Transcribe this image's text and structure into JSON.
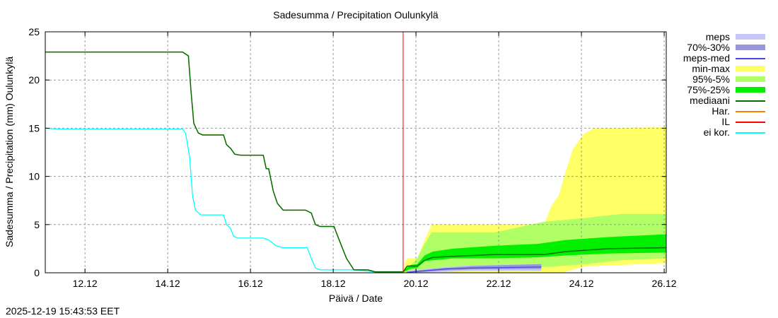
{
  "timestamp": "2025-12-19 15:43:53 EET",
  "chart_data": {
    "type": "area",
    "title": "Sadesumma / Precipitation  Oulunkylä",
    "xlabel": "Päivä / Date",
    "ylabel": "Sadesumma / Precipitation (mm)  Oulunkylä",
    "x_unit": "day of December 2025",
    "xlim": [
      11.04,
      26.05
    ],
    "ylim": [
      0,
      25
    ],
    "grid": true,
    "legend_position": "right",
    "xticks": [
      {
        "value": 12,
        "label": "12.12"
      },
      {
        "value": 14,
        "label": "14.12"
      },
      {
        "value": 16,
        "label": "16.12"
      },
      {
        "value": 18,
        "label": "18.12"
      },
      {
        "value": 20,
        "label": "20.12"
      },
      {
        "value": 22,
        "label": "22.12"
      },
      {
        "value": 24,
        "label": "24.12"
      },
      {
        "value": 26,
        "label": "26.12"
      }
    ],
    "yticks": [
      {
        "value": 0,
        "label": "0"
      },
      {
        "value": 5,
        "label": "5"
      },
      {
        "value": 10,
        "label": "10"
      },
      {
        "value": 15,
        "label": "15"
      },
      {
        "value": 20,
        "label": "20"
      },
      {
        "value": 25,
        "label": "25"
      }
    ],
    "now_line": {
      "name": "IL",
      "x": 19.69,
      "color": "#ff0000"
    },
    "legend": [
      {
        "label": "meps",
        "color": "#c8c8f8",
        "kind": "band"
      },
      {
        "label": "70%-30%",
        "color": "#9898d8",
        "kind": "band"
      },
      {
        "label": "meps-med",
        "color": "#4848e0",
        "kind": "line"
      },
      {
        "label": "min-max",
        "color": "#ffff66",
        "kind": "band"
      },
      {
        "label": "95%-5%",
        "color": "#b0ff66",
        "kind": "band"
      },
      {
        "label": "75%-25%",
        "color": "#00f000",
        "kind": "band"
      },
      {
        "label": "mediaani",
        "color": "#007000",
        "kind": "line"
      },
      {
        "label": "Har.",
        "color": "#ff8000",
        "kind": "line"
      },
      {
        "label": "IL",
        "color": "#ff0000",
        "kind": "line"
      },
      {
        "label": "ei kor.",
        "color": "#00ffff",
        "kind": "line"
      }
    ],
    "bands": [
      {
        "name": "min-max",
        "color": "#ffff66",
        "x": [
          19.69,
          19.78,
          20.03,
          20.17,
          20.38,
          21.91,
          23.11,
          23.28,
          23.45,
          23.62,
          23.79,
          24.03,
          24.22,
          24.31,
          26.05
        ],
        "lo": [
          0.05,
          0.05,
          0.05,
          0.05,
          0.05,
          0.05,
          0.05,
          0.05,
          0.05,
          0.1,
          0.3,
          0.6,
          0.7,
          0.7,
          1.0
        ],
        "hi": [
          0.3,
          1.5,
          1.5,
          3.0,
          5.0,
          5.0,
          5.1,
          7.0,
          8.0,
          10.5,
          12.8,
          14.3,
          14.8,
          15.0,
          15.1
        ]
      },
      {
        "name": "95%-5%",
        "color": "#b0ff66",
        "x": [
          19.69,
          19.86,
          20.03,
          20.21,
          20.38,
          21.91,
          23.11,
          24.14,
          24.31,
          24.99,
          26.05
        ],
        "lo": [
          0.05,
          0.1,
          0.2,
          0.3,
          0.4,
          0.5,
          0.6,
          0.9,
          1.0,
          1.3,
          1.5
        ],
        "hi": [
          0.2,
          0.7,
          1.5,
          3.0,
          4.2,
          4.2,
          5.3,
          5.7,
          5.8,
          6.1,
          6.1
        ]
      },
      {
        "name": "75%-25%",
        "color": "#00f000",
        "x": [
          19.69,
          19.86,
          20.03,
          20.21,
          20.41,
          20.89,
          21.91,
          22.94,
          23.62,
          24.65,
          26.05
        ],
        "lo": [
          0.05,
          0.4,
          0.5,
          1.2,
          1.3,
          1.5,
          1.5,
          1.6,
          1.8,
          2.0,
          2.1
        ],
        "hi": [
          0.2,
          0.8,
          0.9,
          1.8,
          2.2,
          2.5,
          2.8,
          3.0,
          3.4,
          3.7,
          4.0
        ]
      },
      {
        "name": "meps",
        "color": "#c8c8f8",
        "x": [
          19.78,
          20.21,
          20.72,
          21.37,
          23.03
        ],
        "lo": [
          0.0,
          0.05,
          0.1,
          0.2,
          0.2
        ],
        "hi": [
          0.2,
          0.4,
          0.6,
          0.8,
          0.9
        ]
      },
      {
        "name": "70%-30%",
        "color": "#9898d8",
        "x": [
          19.78,
          20.21,
          20.72,
          21.37,
          23.03
        ],
        "lo": [
          0.02,
          0.1,
          0.25,
          0.35,
          0.4
        ],
        "hi": [
          0.1,
          0.3,
          0.5,
          0.7,
          0.9
        ]
      }
    ],
    "series": [
      {
        "name": "ei kor.",
        "color": "#00ffff",
        "x": [
          11.04,
          11.4,
          14.36,
          14.43,
          14.53,
          14.6,
          14.67,
          14.8,
          15.35,
          15.42,
          15.52,
          15.59,
          15.69,
          16.31,
          16.44,
          16.62,
          16.79,
          17.37,
          17.47,
          17.57,
          17.68,
          18.5,
          19.01,
          19.69
        ],
        "y": [
          15.0,
          14.9,
          14.9,
          14.5,
          12.0,
          8.0,
          6.5,
          6.0,
          6.0,
          5.0,
          4.6,
          3.8,
          3.6,
          3.6,
          3.4,
          2.8,
          2.6,
          2.6,
          1.5,
          0.5,
          0.3,
          0.3,
          0.1,
          0.1
        ]
      },
      {
        "name": "Har.",
        "color": "#ff8000",
        "x": [
          11.04,
          14.36,
          14.5,
          14.56,
          14.63,
          14.74,
          14.84,
          15.35,
          15.42,
          15.52,
          15.62,
          15.76,
          16.31,
          16.38,
          16.44,
          16.55,
          16.65,
          16.79,
          17.33,
          17.47,
          17.57,
          17.68,
          18.02,
          18.09,
          18.32,
          18.5,
          18.84,
          19.01,
          19.69
        ],
        "y": [
          22.9,
          22.9,
          22.5,
          19.0,
          15.5,
          14.5,
          14.3,
          14.3,
          13.3,
          12.9,
          12.3,
          12.2,
          12.2,
          10.8,
          10.8,
          8.5,
          7.2,
          6.5,
          6.5,
          6.2,
          5.0,
          4.8,
          4.8,
          4.0,
          1.5,
          0.3,
          0.3,
          0.1,
          0.1
        ]
      },
      {
        "name": "mediaani",
        "color": "#007000",
        "x": [
          11.04,
          14.36,
          14.5,
          14.56,
          14.63,
          14.74,
          14.84,
          15.35,
          15.42,
          15.52,
          15.62,
          15.76,
          16.31,
          16.38,
          16.44,
          16.55,
          16.65,
          16.79,
          17.33,
          17.47,
          17.57,
          17.68,
          18.02,
          18.09,
          18.32,
          18.5,
          18.84,
          19.01,
          19.69,
          19.79,
          20.03,
          20.21,
          20.41,
          20.89,
          21.91,
          23.11,
          23.62,
          24.65,
          26.05
        ],
        "y": [
          22.9,
          22.9,
          22.5,
          19.0,
          15.5,
          14.5,
          14.3,
          14.3,
          13.3,
          12.9,
          12.3,
          12.2,
          12.2,
          10.8,
          10.8,
          8.5,
          7.2,
          6.5,
          6.5,
          6.2,
          5.0,
          4.8,
          4.8,
          4.0,
          1.5,
          0.3,
          0.3,
          0.1,
          0.1,
          0.7,
          0.7,
          1.3,
          1.6,
          1.7,
          1.9,
          1.9,
          2.2,
          2.5,
          2.6
        ]
      },
      {
        "name": "meps-med",
        "color": "#4848e0",
        "x": [
          19.78,
          20.21,
          20.72,
          21.37,
          23.03
        ],
        "y": [
          0.05,
          0.2,
          0.4,
          0.5,
          0.6
        ]
      }
    ]
  }
}
